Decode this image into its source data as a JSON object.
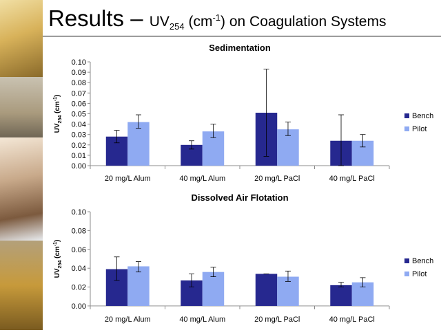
{
  "slide": {
    "title_main": "Results – ",
    "title_uv": "UV",
    "title_uv_sub": "254",
    "title_unit_open": " (cm",
    "title_unit_sup": "-1",
    "title_rest": ") on Coagulation Systems"
  },
  "colors": {
    "bench": "#26288f",
    "pilot": "#8faaf2",
    "axis": "#8c8c8c",
    "strip_top": "#d8b25a",
    "strip_mid": "#a99a7d",
    "strip_person": "#c8a98a",
    "strip_bottom": "#c79a3b"
  },
  "chart_data": [
    {
      "type": "bar",
      "title": "Sedimentation",
      "ylabel_main": "UV",
      "ylabel_sub": "254",
      "ylabel_unit": " (cm",
      "ylabel_sup": "-1",
      "ylabel_close": ")",
      "categories": [
        "20 mg/L Alum",
        "40 mg/L Alum",
        "20 mg/L PaCl",
        "40 mg/L PaCl"
      ],
      "series": [
        {
          "name": "Bench",
          "values": [
            0.028,
            0.02,
            0.051,
            0.024
          ],
          "err_low": [
            0.022,
            0.016,
            0.009,
            0.0
          ],
          "err_high": [
            0.034,
            0.024,
            0.093,
            0.049
          ]
        },
        {
          "name": "Pilot",
          "values": [
            0.042,
            0.033,
            0.035,
            0.024
          ],
          "err_low": [
            0.036,
            0.027,
            0.029,
            0.018
          ],
          "err_high": [
            0.049,
            0.04,
            0.042,
            0.03
          ]
        }
      ],
      "ylim": [
        0,
        0.1
      ],
      "yticks": [
        0.0,
        0.01,
        0.02,
        0.03,
        0.04,
        0.05,
        0.06,
        0.07,
        0.08,
        0.09,
        0.1
      ],
      "ytick_labels": [
        "0.00",
        "0.01",
        "0.02",
        "0.03",
        "0.04",
        "0.05",
        "0.06",
        "0.07",
        "0.08",
        "0.09",
        "0.10"
      ],
      "legend_position": "right",
      "grid": false
    },
    {
      "type": "bar",
      "title": "Dissolved Air Flotation",
      "ylabel_main": "UV",
      "ylabel_sub": "254",
      "ylabel_unit": " (cm",
      "ylabel_sup": "-1",
      "ylabel_close": ")",
      "categories": [
        "20 mg/L Alum",
        "40 mg/L Alum",
        "20 mg/L PaCl",
        "40 mg/L PaCl"
      ],
      "series": [
        {
          "name": "Bench",
          "values": [
            0.039,
            0.027,
            0.034,
            0.022
          ],
          "err_low": [
            0.027,
            0.02,
            0.034,
            0.02
          ],
          "err_high": [
            0.052,
            0.034,
            0.034,
            0.025
          ]
        },
        {
          "name": "Pilot",
          "values": [
            0.042,
            0.036,
            0.031,
            0.025
          ],
          "err_low": [
            0.036,
            0.031,
            0.026,
            0.02
          ],
          "err_high": [
            0.047,
            0.041,
            0.037,
            0.03
          ]
        }
      ],
      "ylim": [
        0,
        0.1
      ],
      "yticks": [
        0.0,
        0.02,
        0.04,
        0.06,
        0.08,
        0.1
      ],
      "ytick_labels": [
        "0.00",
        "0.02",
        "0.04",
        "0.06",
        "0.08",
        "0.10"
      ],
      "legend_position": "right",
      "grid": false
    }
  ]
}
